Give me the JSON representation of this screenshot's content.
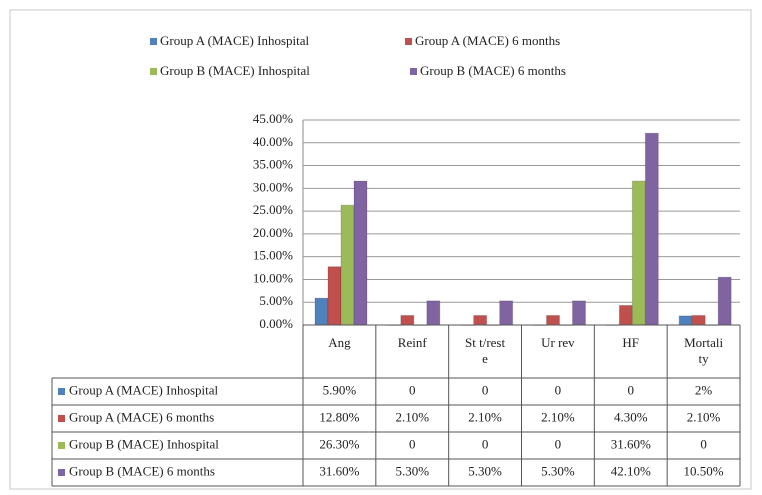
{
  "chart_data": {
    "type": "bar",
    "categories": [
      "Ang",
      "Reinf",
      "St t/reste",
      "Ur rev",
      "HF",
      "Mortality"
    ],
    "series": [
      {
        "name": "Group A (MACE) Inhospital",
        "color": "#4f81bd",
        "values": [
          5.9,
          0,
          0,
          0,
          0,
          2
        ],
        "value_labels": [
          "5.90%",
          "0",
          "0",
          "0",
          "0",
          "2%"
        ]
      },
      {
        "name": "Group A (MACE) 6 months",
        "color": "#c0504d",
        "values": [
          12.8,
          2.1,
          2.1,
          2.1,
          4.3,
          2.1
        ],
        "value_labels": [
          "12.80%",
          "2.10%",
          "2.10%",
          "2.10%",
          "4.30%",
          "2.10%"
        ]
      },
      {
        "name": "Group B (MACE) Inhospital",
        "color": "#9bbb59",
        "values": [
          26.3,
          0,
          0,
          0,
          31.6,
          0
        ],
        "value_labels": [
          "26.30%",
          "0",
          "0",
          "0",
          "31.60%",
          "0"
        ]
      },
      {
        "name": "Group B (MACE) 6 months",
        "color": "#8064a2",
        "values": [
          31.6,
          5.3,
          5.3,
          5.3,
          42.1,
          10.5
        ],
        "value_labels": [
          "31.60%",
          "5.30%",
          "5.30%",
          "5.30%",
          "42.10%",
          "10.50%"
        ]
      }
    ],
    "ylim": [
      0,
      45
    ],
    "yticks": [
      {
        "value": 0,
        "label": "0.00%"
      },
      {
        "value": 5,
        "label": "5.00%"
      },
      {
        "value": 10,
        "label": "10.00%"
      },
      {
        "value": 15,
        "label": "15.00%"
      },
      {
        "value": 20,
        "label": "20.00%"
      },
      {
        "value": 25,
        "label": "25.00%"
      },
      {
        "value": 30,
        "label": "30.00%"
      },
      {
        "value": 35,
        "label": "35.00%"
      },
      {
        "value": 40,
        "label": "40.00%"
      },
      {
        "value": 45,
        "label": "45.00%"
      }
    ],
    "grid": true
  }
}
